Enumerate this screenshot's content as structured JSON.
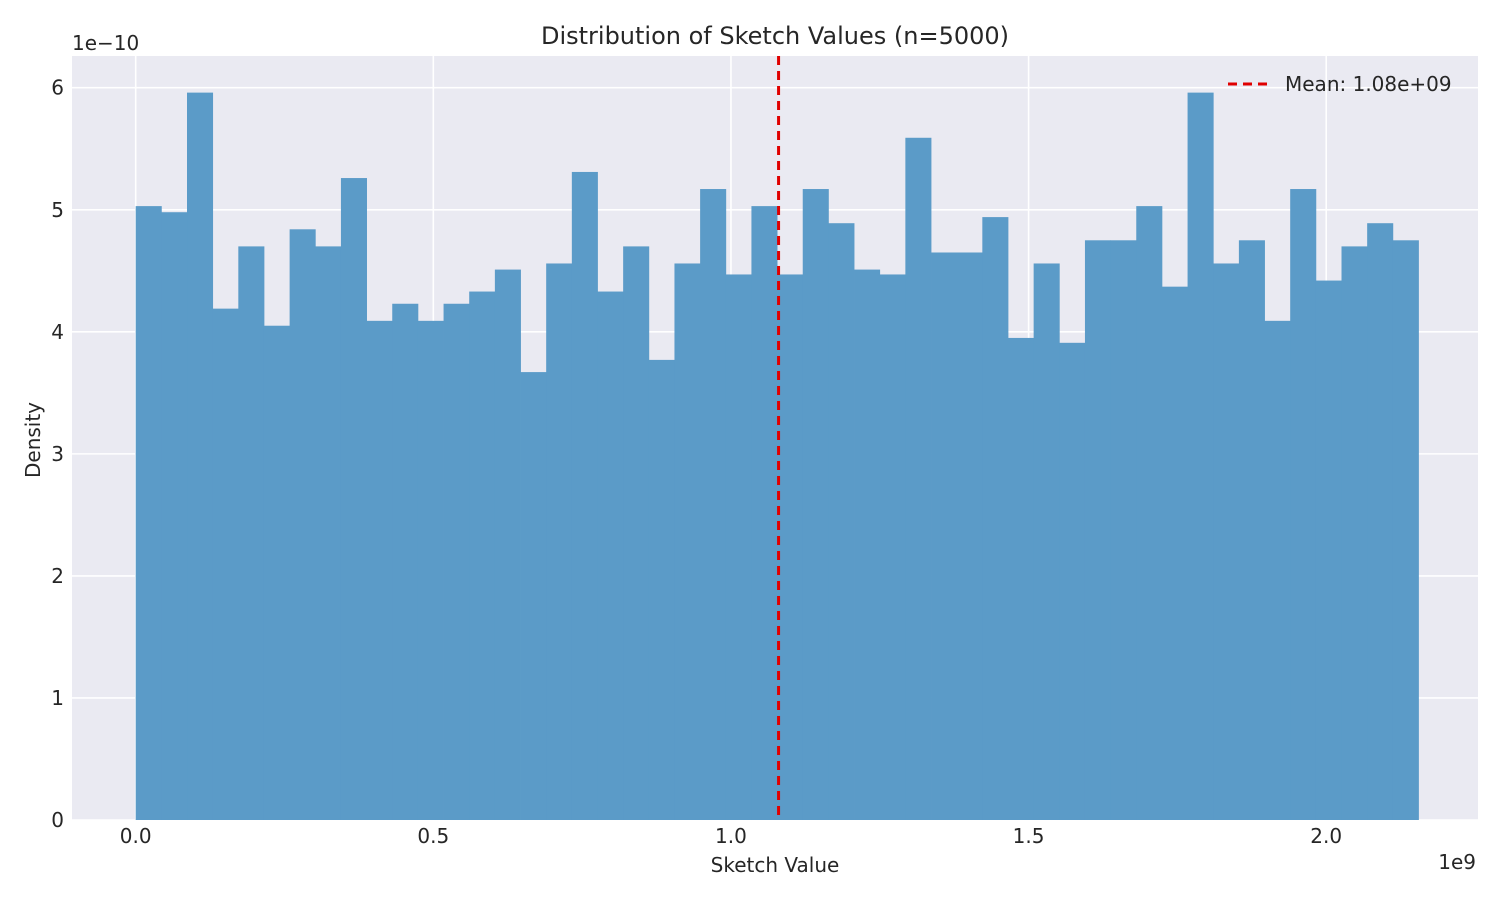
{
  "chart_data": {
    "type": "bar",
    "title": "Distribution of Sketch Values (n=5000)",
    "xlabel": "Sketch Value",
    "ylabel": "Density",
    "x_offset_label": "1e9",
    "y_offset_label": "1e−10",
    "xlim": [
      -0.107,
      2.255
    ],
    "ylim": [
      0,
      6.26
    ],
    "x_ticks": [
      0.0,
      0.5,
      1.0,
      1.5,
      2.0
    ],
    "x_tick_labels": [
      "0.0",
      "0.5",
      "1.0",
      "1.5",
      "2.0"
    ],
    "y_ticks": [
      0,
      1,
      2,
      3,
      4,
      5,
      6
    ],
    "y_tick_labels": [
      "0",
      "1",
      "2",
      "3",
      "4",
      "5",
      "6"
    ],
    "grid": true,
    "bin_start": 0.0,
    "bin_width": 0.0431,
    "bar_color": "#5b9bc8",
    "densities": [
      5.03,
      4.98,
      5.96,
      4.19,
      4.7,
      4.05,
      4.84,
      4.7,
      5.26,
      4.09,
      4.23,
      4.09,
      4.23,
      4.33,
      4.51,
      3.67,
      4.56,
      5.31,
      4.33,
      4.7,
      3.77,
      4.56,
      5.17,
      4.47,
      5.03,
      4.47,
      5.17,
      4.89,
      4.51,
      4.47,
      5.59,
      4.65,
      4.65,
      4.94,
      3.95,
      4.56,
      3.91,
      4.75,
      4.75,
      5.03,
      4.37,
      5.96,
      4.56,
      4.75,
      4.09,
      5.17,
      4.42,
      4.7,
      4.89,
      4.75
    ],
    "mean_line": {
      "x": 1.08,
      "label": "Mean: 1.08e+09",
      "color": "#e00000"
    },
    "legend_position": "top-right"
  }
}
